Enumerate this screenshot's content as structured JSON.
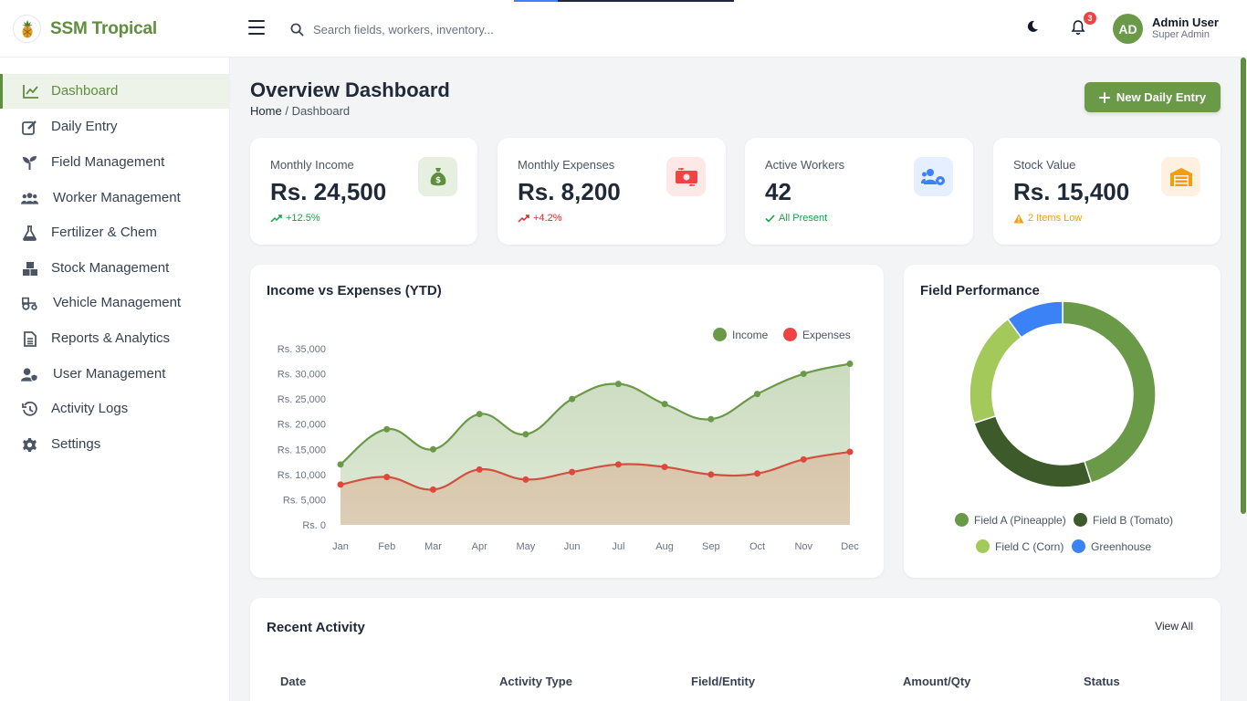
{
  "app": {
    "name": "SSM Tropical"
  },
  "search": {
    "placeholder": "Search fields, workers, inventory..."
  },
  "header": {
    "notification_count": "3",
    "avatar_initials": "AD",
    "user_name": "Admin User",
    "user_role": "Super Admin"
  },
  "sidebar": {
    "items": [
      {
        "label": "Dashboard",
        "icon": "chart-line-icon",
        "active": true
      },
      {
        "label": "Daily Entry",
        "icon": "edit-icon"
      },
      {
        "label": "Field Management",
        "icon": "seedling-icon"
      },
      {
        "label": "Worker Management",
        "icon": "users-icon"
      },
      {
        "label": "Fertilizer & Chem",
        "icon": "flask-icon"
      },
      {
        "label": "Stock Management",
        "icon": "boxes-icon"
      },
      {
        "label": "Vehicle Management",
        "icon": "tractor-icon"
      },
      {
        "label": "Reports & Analytics",
        "icon": "file-report-icon"
      },
      {
        "label": "User Management",
        "icon": "user-shield-icon"
      },
      {
        "label": "Activity Logs",
        "icon": "history-icon"
      },
      {
        "label": "Settings",
        "icon": "gear-icon"
      }
    ]
  },
  "page": {
    "title": "Overview Dashboard",
    "breadcrumb_home": "Home",
    "breadcrumb_separator": "/",
    "breadcrumb_current": "Dashboard",
    "new_entry_label": "New Daily Entry"
  },
  "stats": [
    {
      "label": "Monthly Income",
      "value": "Rs. 24,500",
      "trend": "+12.5%",
      "trend_color": "#16a34a",
      "icon": "money-bag-icon",
      "icon_bg": "#e7efe1",
      "icon_color": "#5e8e3e"
    },
    {
      "label": "Monthly Expenses",
      "value": "Rs. 8,200",
      "trend": "+4.2%",
      "trend_color": "#dc2626",
      "icon": "money-exchange-icon",
      "icon_bg": "#fde8e8",
      "icon_color": "#ef4444"
    },
    {
      "label": "Active Workers",
      "value": "42",
      "trend": "All Present",
      "trend_color": "#16a34a",
      "icon": "users-gear-icon",
      "icon_bg": "#e6efff",
      "icon_color": "#3b82f6"
    },
    {
      "label": "Stock Value",
      "value": "Rs. 15,400",
      "trend": "2 Items Low",
      "trend_color": "#f59e0b",
      "icon": "warehouse-icon",
      "icon_bg": "#fef1e1",
      "icon_color": "#f59e0b"
    }
  ],
  "income_chart": {
    "title": "Income vs Expenses (YTD)",
    "chart_data": {
      "type": "area",
      "categories": [
        "Jan",
        "Feb",
        "Mar",
        "Apr",
        "May",
        "Jun",
        "Jul",
        "Aug",
        "Sep",
        "Oct",
        "Nov",
        "Dec"
      ],
      "series": [
        {
          "name": "Income",
          "color": "#6a9a48",
          "values": [
            12000,
            19000,
            15000,
            22000,
            18000,
            25000,
            28000,
            24000,
            21000,
            26000,
            30000,
            32000
          ]
        },
        {
          "name": "Expenses",
          "color": "#ef4444",
          "values": [
            8000,
            9500,
            7000,
            11000,
            9000,
            10500,
            12000,
            11500,
            10000,
            10200,
            13000,
            14500
          ]
        }
      ],
      "y_ticks": [
        "Rs. 0",
        "Rs. 5,000",
        "Rs. 10,000",
        "Rs. 15,000",
        "Rs. 20,000",
        "Rs. 25,000",
        "Rs. 30,000",
        "Rs. 35,000"
      ],
      "ylim": [
        0,
        35000
      ],
      "legend_position": "top-right",
      "grid": false
    }
  },
  "field_chart": {
    "title": "Field Performance",
    "chart_data": {
      "type": "pie",
      "labels": [
        "Field A (Pineapple)",
        "Field B (Tomato)",
        "Field C (Corn)",
        "Greenhouse"
      ],
      "values": [
        45,
        25,
        20,
        10
      ],
      "colors": [
        "#6a9a48",
        "#3c5a2a",
        "#a3c95a",
        "#3b82f6"
      ]
    }
  },
  "recent_activity": {
    "title": "Recent Activity",
    "view_all": "View All",
    "columns": [
      "Date",
      "Activity Type",
      "Field/Entity",
      "Amount/Qty",
      "Status"
    ]
  }
}
